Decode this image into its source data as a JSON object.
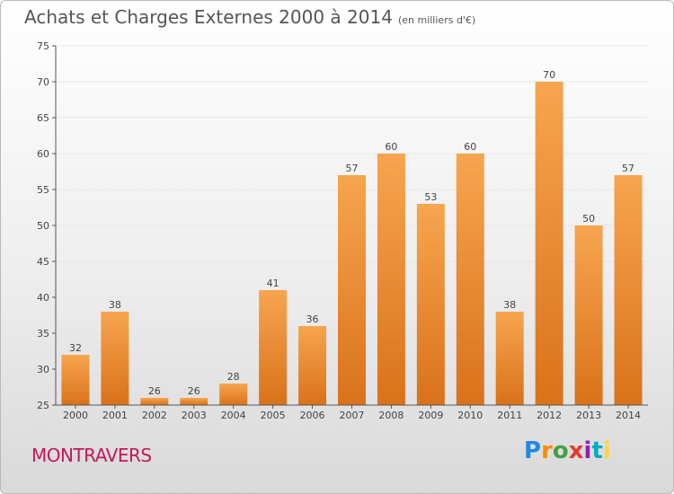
{
  "title": "Achats et Charges Externes 2000 à 2014",
  "unit_label": "(en milliers d'€)",
  "commune": "MONTRAVERS",
  "logo": {
    "letters": [
      "P",
      "r",
      "o",
      "x",
      "i",
      "t",
      "i"
    ],
    "colors": [
      "#1e88e5",
      "#fb8c00",
      "#43a047",
      "#e53935",
      "#8e24aa",
      "#00acc1",
      "#fdd835"
    ]
  },
  "colors": {
    "bar_light": "#f7a54f",
    "bar_dark": "#d9721a",
    "axis": "#555555",
    "grid": "#e6e6e6",
    "text": "#444444"
  },
  "chart_data": {
    "type": "bar",
    "categories": [
      "2000",
      "2001",
      "2002",
      "2003",
      "2004",
      "2005",
      "2006",
      "2007",
      "2008",
      "2009",
      "2010",
      "2011",
      "2012",
      "2013",
      "2014"
    ],
    "values": [
      32,
      38,
      26,
      26,
      28,
      41,
      36,
      57,
      60,
      53,
      60,
      38,
      70,
      50,
      57
    ],
    "ylim": [
      25,
      75
    ],
    "yticks": [
      25,
      30,
      35,
      40,
      45,
      50,
      55,
      60,
      65,
      70,
      75
    ],
    "grid": true,
    "data_labels": true,
    "xlabel": "",
    "ylabel": ""
  }
}
